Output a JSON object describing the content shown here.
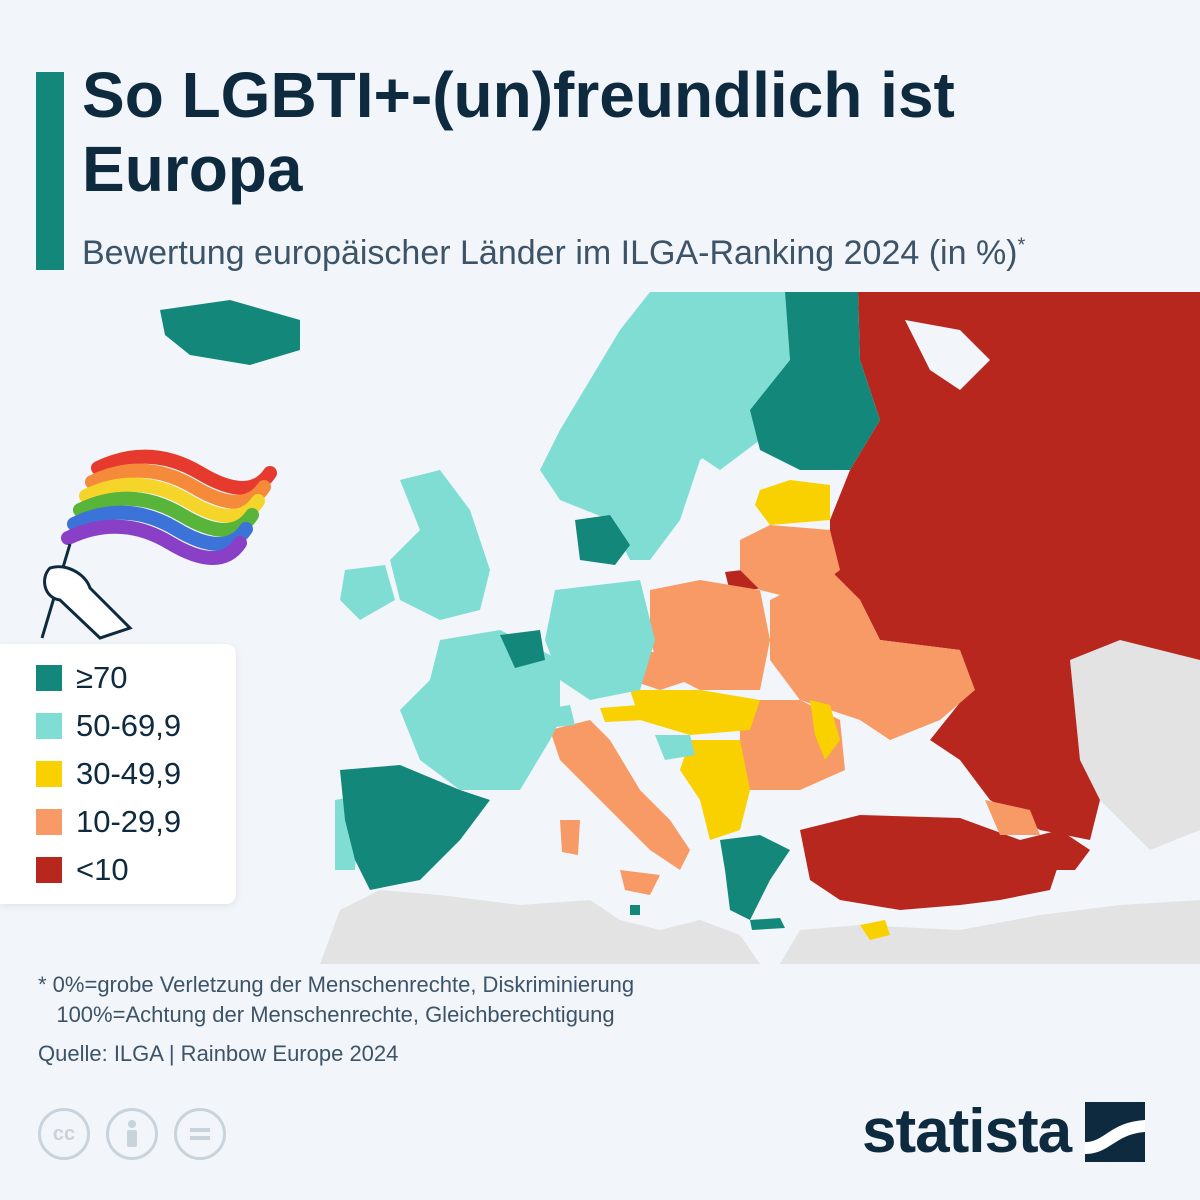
{
  "header": {
    "title": "So LGBTI+-(un)freundlich ist Europa",
    "subtitle": "Bewertung europäischer Länder im ILGA-Ranking 2024 (in %)",
    "subtitle_mark": "*"
  },
  "colors": {
    "accent": "#13877a",
    "land_non_europe": "#e3e3e3",
    "sea": "#f2f5f9",
    "ge70": "#13877a",
    "r50_69": "#7fddd4",
    "r30_49": "#f9d000",
    "r10_29": "#f79a66",
    "lt10": "#b8271d"
  },
  "legend": {
    "items": [
      {
        "label": "≥70",
        "color": "#13877a"
      },
      {
        "label": "50-69,9",
        "color": "#7fddd4"
      },
      {
        "label": "30-49,9",
        "color": "#f9d000"
      },
      {
        "label": "10-29,9",
        "color": "#f79a66"
      },
      {
        "label": "<10",
        "color": "#b8271d"
      }
    ]
  },
  "footnote": {
    "line1": "* 0%=grobe Verletzung der Menschenrechte, Diskriminierung",
    "line2": "   100%=Achtung der Menschenrechte, Gleichberechtigung"
  },
  "source": "Quelle: ILGA | Rainbow Europe 2024",
  "footer": {
    "brand": "statista",
    "license_icons": [
      "cc-icon",
      "attribution-icon",
      "no-derivatives-icon"
    ],
    "cc_text": "cc"
  },
  "map_icons": [
    "iceland",
    "flag-icon",
    "europe-map"
  ]
}
